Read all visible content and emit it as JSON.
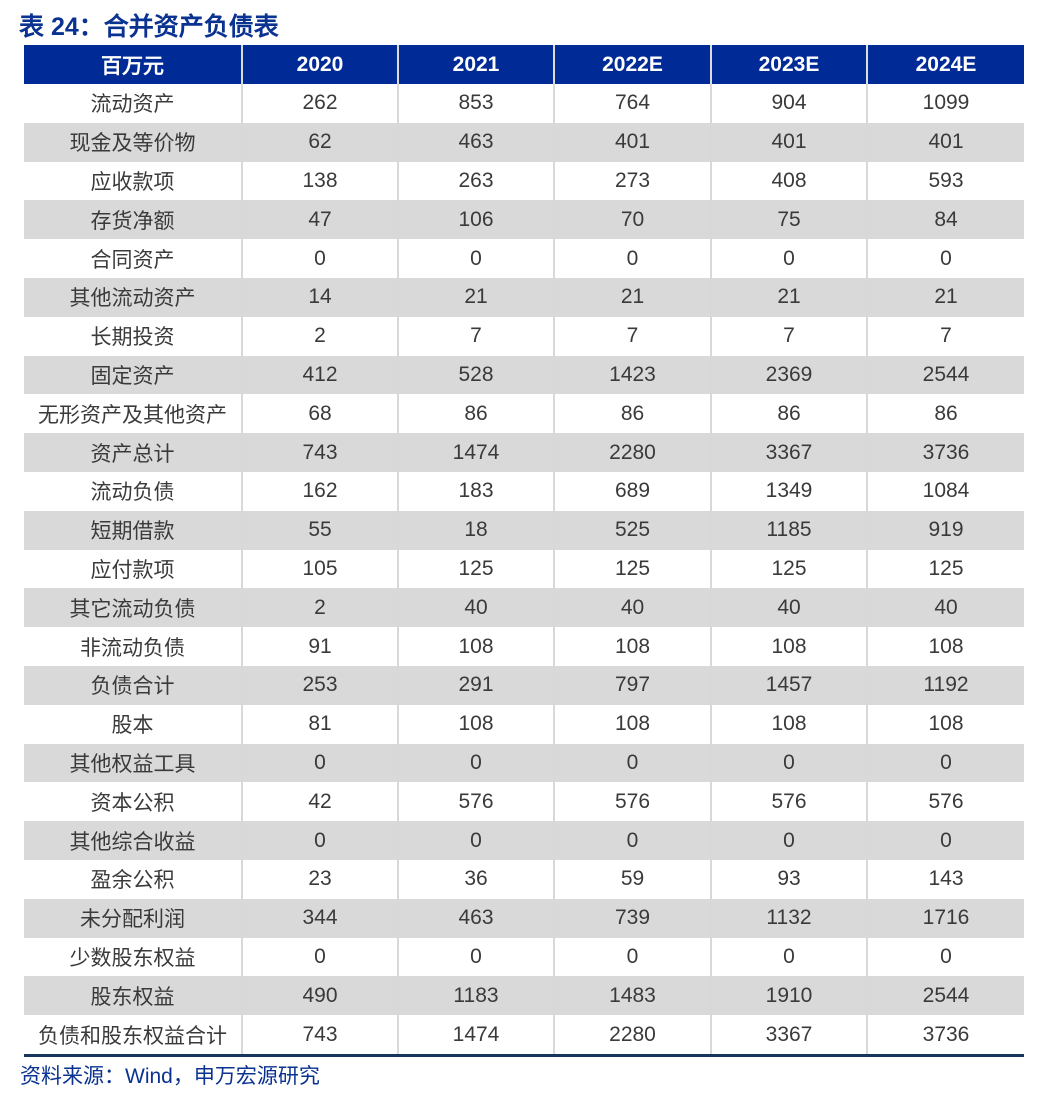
{
  "title": "表 24：合并资产负债表",
  "table": {
    "headers": [
      "百万元",
      "2020",
      "2021",
      "2022E",
      "2023E",
      "2024E"
    ],
    "rows": [
      [
        "流动资产",
        "262",
        "853",
        "764",
        "904",
        "1099"
      ],
      [
        "现金及等价物",
        "62",
        "463",
        "401",
        "401",
        "401"
      ],
      [
        "应收款项",
        "138",
        "263",
        "273",
        "408",
        "593"
      ],
      [
        "存货净额",
        "47",
        "106",
        "70",
        "75",
        "84"
      ],
      [
        "合同资产",
        "0",
        "0",
        "0",
        "0",
        "0"
      ],
      [
        "其他流动资产",
        "14",
        "21",
        "21",
        "21",
        "21"
      ],
      [
        "长期投资",
        "2",
        "7",
        "7",
        "7",
        "7"
      ],
      [
        "固定资产",
        "412",
        "528",
        "1423",
        "2369",
        "2544"
      ],
      [
        "无形资产及其他资产",
        "68",
        "86",
        "86",
        "86",
        "86"
      ],
      [
        "资产总计",
        "743",
        "1474",
        "2280",
        "3367",
        "3736"
      ],
      [
        "流动负债",
        "162",
        "183",
        "689",
        "1349",
        "1084"
      ],
      [
        "短期借款",
        "55",
        "18",
        "525",
        "1185",
        "919"
      ],
      [
        "应付款项",
        "105",
        "125",
        "125",
        "125",
        "125"
      ],
      [
        "其它流动负债",
        "2",
        "40",
        "40",
        "40",
        "40"
      ],
      [
        "非流动负债",
        "91",
        "108",
        "108",
        "108",
        "108"
      ],
      [
        "负债合计",
        "253",
        "291",
        "797",
        "1457",
        "1192"
      ],
      [
        "股本",
        "81",
        "108",
        "108",
        "108",
        "108"
      ],
      [
        "其他权益工具",
        "0",
        "0",
        "0",
        "0",
        "0"
      ],
      [
        "资本公积",
        "42",
        "576",
        "576",
        "576",
        "576"
      ],
      [
        "其他综合收益",
        "0",
        "0",
        "0",
        "0",
        "0"
      ],
      [
        "盈余公积",
        "23",
        "36",
        "59",
        "93",
        "143"
      ],
      [
        "未分配利润",
        "344",
        "463",
        "739",
        "1132",
        "1716"
      ],
      [
        "少数股东权益",
        "0",
        "0",
        "0",
        "0",
        "0"
      ],
      [
        "股东权益",
        "490",
        "1183",
        "1483",
        "1910",
        "2544"
      ],
      [
        "负债和股东权益合计",
        "743",
        "1474",
        "2280",
        "3367",
        "3736"
      ]
    ]
  },
  "source": "资料来源：Wind，申万宏源研究",
  "colors": {
    "header_bg": "#002a95",
    "title_text": "#0a3291",
    "stripe_bg": "#d9d9d9",
    "bottom_rule": "#17365d"
  }
}
